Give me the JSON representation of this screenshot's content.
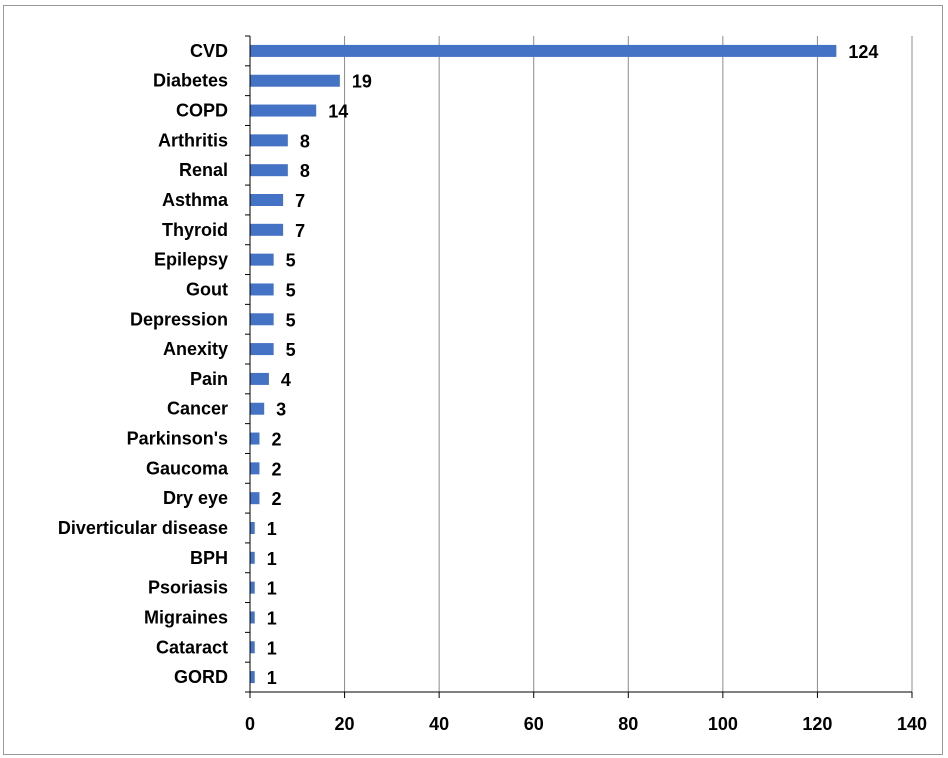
{
  "chart_data": {
    "type": "bar",
    "orientation": "horizontal",
    "categories": [
      "CVD",
      "Diabetes",
      "COPD",
      "Arthritis",
      "Renal",
      "Asthma",
      "Thyroid",
      "Epilepsy",
      "Gout",
      "Depression",
      "Anexity",
      "Pain",
      "Cancer",
      "Parkinson's",
      "Gaucoma",
      "Dry eye",
      "Diverticular disease",
      "BPH",
      "Psoriasis",
      "Migraines",
      "Cataract",
      "GORD"
    ],
    "values": [
      124,
      19,
      14,
      8,
      8,
      7,
      7,
      5,
      5,
      5,
      5,
      4,
      3,
      2,
      2,
      2,
      1,
      1,
      1,
      1,
      1,
      1
    ],
    "title": "",
    "xlabel": "",
    "ylabel": "",
    "xlim": [
      0,
      140
    ],
    "x_ticks": [
      0,
      20,
      40,
      60,
      80,
      100,
      120,
      140
    ],
    "grid": "vertical",
    "legend": "none",
    "data_labels": true,
    "bar_color": "#4472C4",
    "grid_color": "#8c8c8c",
    "axis_color": "#000000"
  }
}
